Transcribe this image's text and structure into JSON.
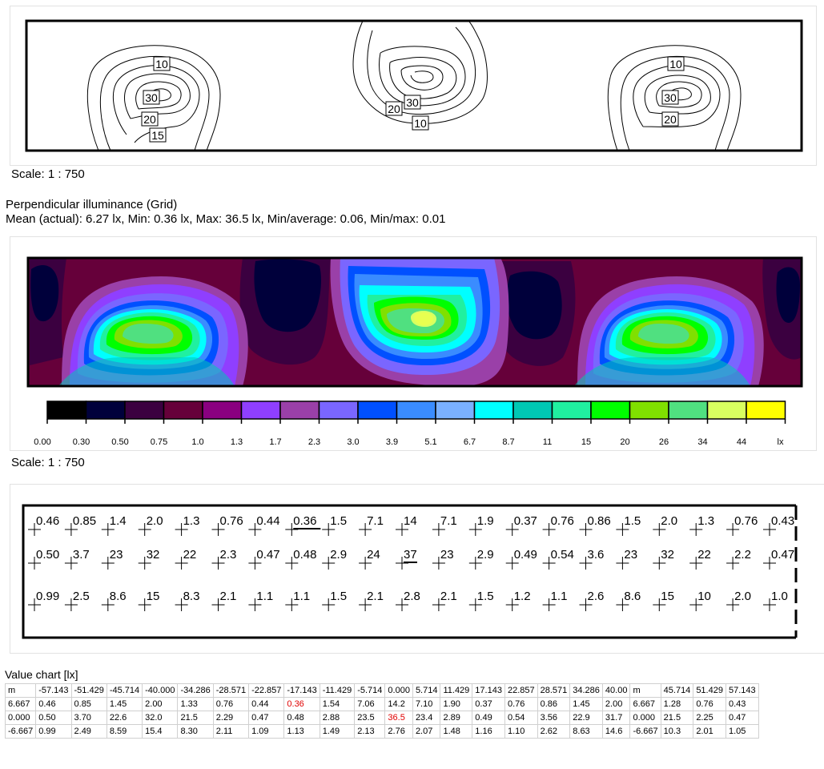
{
  "isoline_panel": {
    "labels": [
      "10",
      "30",
      "20",
      "15",
      "20",
      "30",
      "10",
      "10",
      "30",
      "20"
    ]
  },
  "scale_text_1": "Scale: 1 : 750",
  "section_title": "Perpendicular illuminance (Grid)",
  "stats": "Mean (actual): 6.27 lx, Min: 0.36 lx, Max: 36.5 lx, Min/average: 0.06, Min/max: 0.01",
  "legend": {
    "colors": [
      "#000000",
      "#00003b",
      "#3b0040",
      "#66003a",
      "#8a0080",
      "#8f3fff",
      "#9a40a8",
      "#7a66ff",
      "#0050ff",
      "#3a8cff",
      "#7ab0ff",
      "#00ffff",
      "#00c8b4",
      "#20f0a0",
      "#00ff00",
      "#80e000",
      "#50e080",
      "#d8ff60",
      "#ffff00"
    ],
    "ticks": [
      "0.00",
      "0.30",
      "0.50",
      "0.75",
      "1.0",
      "1.3",
      "1.7",
      "2.3",
      "3.0",
      "3.9",
      "5.1",
      "6.7",
      "8.7",
      "11",
      "15",
      "20",
      "26",
      "34",
      "44",
      "lx"
    ]
  },
  "scale_text_2": "Scale: 1 : 750",
  "grid_values": [
    [
      "0.46",
      "0.85",
      "1.4",
      "2.0",
      "1.3",
      "0.76",
      "0.44",
      "0.36",
      "1.5",
      "7.1",
      "14",
      "7.1",
      "1.9",
      "0.37",
      "0.76",
      "0.86",
      "1.5",
      "2.0",
      "1.3",
      "0.76",
      "0.43"
    ],
    [
      "0.50",
      "3.7",
      "23",
      "32",
      "22",
      "2.3",
      "0.47",
      "0.48",
      "2.9",
      "24",
      "37",
      "23",
      "2.9",
      "0.49",
      "0.54",
      "3.6",
      "23",
      "32",
      "22",
      "2.2",
      "0.47"
    ],
    [
      "0.99",
      "2.5",
      "8.6",
      "15",
      "8.3",
      "2.1",
      "1.1",
      "1.1",
      "1.5",
      "2.1",
      "2.8",
      "2.1",
      "1.5",
      "1.2",
      "1.1",
      "2.6",
      "8.6",
      "15",
      "10",
      "2.0",
      "1.0"
    ]
  ],
  "value_chart": {
    "title": "Value chart [lx]",
    "header": [
      "m",
      "-57.143",
      "-51.429",
      "-45.714",
      "-40.000",
      "-34.286",
      "-28.571",
      "-22.857",
      "-17.143",
      "-11.429",
      "-5.714",
      "0.000",
      "5.714",
      "11.429",
      "17.143",
      "22.857",
      "28.571",
      "34.286",
      "40.00",
      "m",
      "45.714",
      "51.429",
      "57.143"
    ],
    "rows": [
      [
        "6.667",
        "0.46",
        "0.85",
        "1.45",
        "2.00",
        "1.33",
        "0.76",
        "0.44",
        "0.36",
        "1.54",
        "7.06",
        "14.2",
        "7.10",
        "1.90",
        "0.37",
        "0.76",
        "0.86",
        "1.45",
        "2.00",
        "6.667",
        "1.28",
        "0.76",
        "0.43"
      ],
      [
        "0.000",
        "0.50",
        "3.70",
        "22.6",
        "32.0",
        "21.5",
        "2.29",
        "0.47",
        "0.48",
        "2.88",
        "23.5",
        "36.5",
        "23.4",
        "2.89",
        "0.49",
        "0.54",
        "3.56",
        "22.9",
        "31.7",
        "0.000",
        "21.5",
        "2.25",
        "0.47"
      ],
      [
        "-6.667",
        "0.99",
        "2.49",
        "8.59",
        "15.4",
        "8.30",
        "2.11",
        "1.09",
        "1.13",
        "1.49",
        "2.13",
        "2.76",
        "2.07",
        "1.48",
        "1.16",
        "1.10",
        "2.62",
        "8.63",
        "14.6",
        "-6.667",
        "10.3",
        "2.01",
        "1.05"
      ]
    ]
  }
}
